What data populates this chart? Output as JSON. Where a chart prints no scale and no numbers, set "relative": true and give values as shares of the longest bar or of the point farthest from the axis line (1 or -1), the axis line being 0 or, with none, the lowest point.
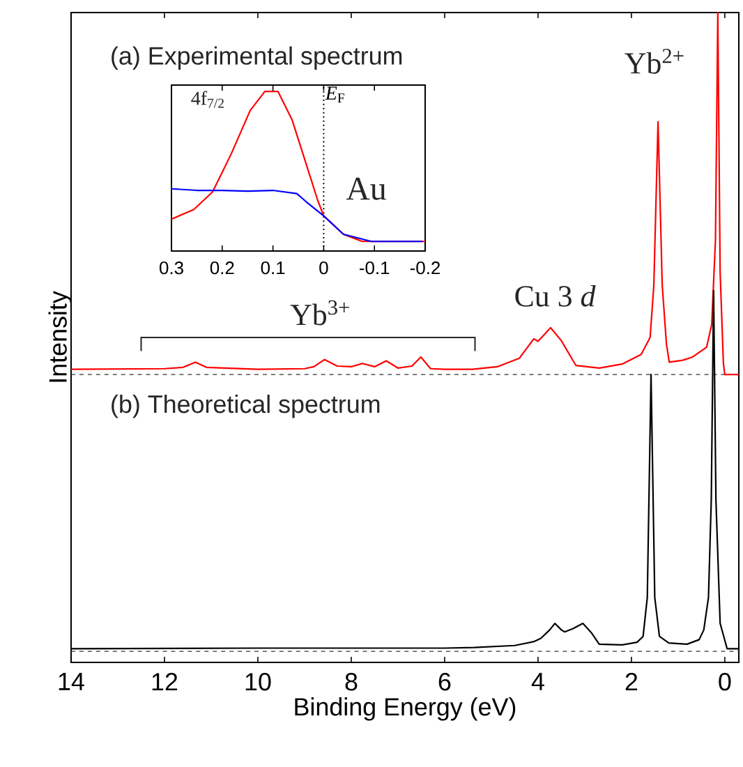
{
  "chart_data": [
    {
      "type": "line",
      "relative": true,
      "xlabel": "Binding Energy (eV)",
      "ylabel": "Intensity",
      "xlim": [
        14,
        -0.3
      ],
      "xticks": [
        14,
        12,
        10,
        8,
        6,
        4,
        2,
        0
      ],
      "annotations": [
        "(a) Experimental spectrum",
        "(b) Theoretical spectrum",
        "Yb$^{2+}$",
        "Yb$^{3+}$",
        "Cu 3 *d*"
      ],
      "ref_lines": [
        {
          "axis": "y",
          "value": 0.443,
          "color": "#333333",
          "line_style": "dashed"
        },
        {
          "axis": "y",
          "value": 0.017,
          "color": "#333333",
          "line_style": "dashed"
        }
      ],
      "series": [
        {
          "color": "#ff0000",
          "x": [
            14,
            12,
            11.6,
            11.34,
            11.1,
            10,
            9,
            8.8,
            8.57,
            8.3,
            8.0,
            7.76,
            7.5,
            7.25,
            7.0,
            6.7,
            6.51,
            6.3,
            6.0,
            5.4,
            4.87,
            4.4,
            4.09,
            4.0,
            3.73,
            3.5,
            3.19,
            2.69,
            2.2,
            1.79,
            1.6,
            1.52,
            1.43,
            1.34,
            1.25,
            1.19,
            0.9,
            0.69,
            0.39,
            0.28,
            0.2,
            0.15,
            0.1,
            0.03,
            0.0,
            -0.3
          ],
          "values": [
            0.451,
            0.452,
            0.454,
            0.462,
            0.454,
            0.451,
            0.452,
            0.455,
            0.466,
            0.456,
            0.455,
            0.46,
            0.455,
            0.464,
            0.453,
            0.456,
            0.47,
            0.452,
            0.451,
            0.451,
            0.455,
            0.468,
            0.498,
            0.494,
            0.515,
            0.495,
            0.457,
            0.453,
            0.459,
            0.474,
            0.5,
            0.58,
            0.832,
            0.58,
            0.49,
            0.462,
            0.465,
            0.47,
            0.485,
            0.52,
            0.65,
            1.0,
            0.6,
            0.46,
            0.443,
            0.443
          ]
        },
        {
          "color": "#000000",
          "x": [
            14,
            10,
            6,
            5.37,
            4.5,
            4.09,
            3.94,
            3.75,
            3.64,
            3.5,
            3.43,
            3.25,
            3.04,
            2.85,
            2.69,
            2.2,
            1.88,
            1.75,
            1.66,
            1.58,
            1.5,
            1.4,
            1.2,
            0.81,
            0.55,
            0.45,
            0.35,
            0.29,
            0.24,
            0.19,
            0.1,
            -0.05,
            -0.3
          ],
          "values": [
            0.021,
            0.022,
            0.022,
            0.023,
            0.026,
            0.032,
            0.037,
            0.05,
            0.06,
            0.05,
            0.047,
            0.052,
            0.06,
            0.045,
            0.028,
            0.027,
            0.031,
            0.04,
            0.1,
            0.443,
            0.1,
            0.04,
            0.03,
            0.028,
            0.035,
            0.05,
            0.1,
            0.25,
            0.572,
            0.25,
            0.06,
            0.021,
            0.021
          ]
        }
      ]
    },
    {
      "type": "line",
      "relative": true,
      "xlim": [
        0.3,
        -0.2
      ],
      "xticks": [
        0.3,
        0.2,
        0.1,
        0,
        -0.1,
        -0.2
      ],
      "tick_labels": "x",
      "annotations": [
        "4f$_{7/2}$",
        "Au"
      ],
      "ref_lines": [
        {
          "axis": "x",
          "value": 0,
          "label": "*E*$_{F}$",
          "color": "#000000",
          "line_style": "dotted"
        }
      ],
      "series": [
        {
          "color": "#ff0000",
          "x": [
            0.3,
            0.256,
            0.219,
            0.182,
            0.145,
            0.116,
            0.09,
            0.062,
            0.035,
            0.012,
            0.0,
            -0.039,
            -0.076,
            -0.2
          ],
          "values": [
            0.2,
            0.26,
            0.37,
            0.61,
            0.88,
            1.0,
            1.0,
            0.82,
            0.55,
            0.32,
            0.22,
            0.105,
            0.06,
            0.06
          ]
        },
        {
          "color": "#0000ff",
          "x": [
            0.3,
            0.25,
            0.2,
            0.15,
            0.1,
            0.053,
            0.035,
            0.0,
            -0.039,
            -0.094,
            -0.195
          ],
          "values": [
            0.39,
            0.38,
            0.38,
            0.375,
            0.38,
            0.36,
            0.31,
            0.22,
            0.105,
            0.06,
            0.06
          ]
        }
      ]
    }
  ]
}
